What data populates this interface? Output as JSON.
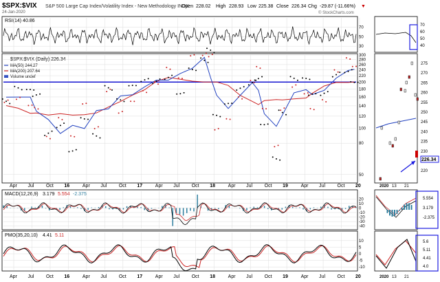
{
  "header": {
    "symbol": "$SPX:$VIX",
    "description": "S&P 500 Large Cap Index/Volatility Index - New Methodology INDX",
    "date": "24-Jan-2020",
    "open_label": "Open",
    "open": "228.02",
    "high_label": "High",
    "high": "228.93",
    "low_label": "Low",
    "low": "225.38",
    "close_label": "Close",
    "close": "226.34",
    "chg_label": "Chg",
    "chg": "-29.87 (-11.66%)",
    "chg_arrow": "▼",
    "watermark": "© StockCharts.com",
    "colors": {
      "bg": "#ffffff",
      "grid": "#dcdcdc",
      "axis": "#000000",
      "ma50": "#1f3fbf",
      "ma200": "#cc2222",
      "accent_box": "#1a1ae0",
      "macd_hist": "#2f7f9f"
    }
  },
  "panels": {
    "rsi": {
      "legend": "RSI(14) 40.86",
      "ticks": [
        "70",
        "50",
        "30"
      ],
      "right_ticks": [
        "70",
        "60",
        "50",
        "40"
      ]
    },
    "price": {
      "legend": [
        "$SPX:$VIX (Daily) 226.34",
        "MA(50) 244.27",
        "MA(200) 207.64",
        "Volume undef"
      ],
      "ticks": [
        "300",
        "280",
        "260",
        "240",
        "220",
        "200",
        "180",
        "160",
        "140",
        "120",
        "100",
        "80",
        "50"
      ],
      "right_ticks": [
        "275",
        "270",
        "265",
        "260",
        "255",
        "250",
        "245",
        "240",
        "235",
        "230",
        "225",
        "220"
      ],
      "last_value": "226.34",
      "horizontal_line_value": 200
    },
    "macd": {
      "legend_prefix": "MACD(12,26,9)",
      "legend_values": [
        "3.179",
        "5.554",
        "-2.375"
      ],
      "ticks": [
        "20",
        "10",
        "0",
        "-10",
        "-20",
        "-30",
        "-40"
      ],
      "right_values": [
        "5.554",
        "3.179",
        "-2.375"
      ]
    },
    "pmo": {
      "legend_prefix": "PMO(35,20,10)",
      "legend_values": [
        "4.41",
        "5.11"
      ],
      "ticks": [
        "10",
        "5",
        "0",
        "-5",
        "-10"
      ],
      "right_values": [
        "5.6",
        "5.11",
        "4.41",
        "4.0"
      ]
    }
  },
  "x_axis": {
    "labels": [
      "Apr",
      "Jul",
      "Oct",
      "16",
      "Apr",
      "Jul",
      "Oct",
      "17",
      "Apr",
      "Jul",
      "Oct",
      "18",
      "Apr",
      "Jul",
      "Oct",
      "19",
      "Apr",
      "Jul",
      "Oct",
      "20"
    ],
    "bold_labels": [
      "16",
      "17",
      "18",
      "19",
      "20"
    ],
    "right_labels": [
      "2020",
      "13",
      "21"
    ]
  },
  "chart_data": {
    "type": "line",
    "title": "$SPX:$VIX",
    "x_range": [
      "2015-03",
      "2020-01-24"
    ],
    "y_scale": "log",
    "ylim": [
      45,
      300
    ],
    "series": [
      {
        "name": "$SPX:$VIX (Daily)",
        "last": 226.34,
        "x": [
          "2015-03",
          "2015-05",
          "2015-07",
          "2015-08",
          "2015-10",
          "2015-12",
          "2016-02",
          "2016-04",
          "2016-06",
          "2016-08",
          "2016-10",
          "2016-12",
          "2017-02",
          "2017-04",
          "2017-06",
          "2017-08",
          "2017-10",
          "2017-12",
          "2018-01",
          "2018-02",
          "2018-04",
          "2018-06",
          "2018-08",
          "2018-09",
          "2018-10",
          "2018-12",
          "2019-01",
          "2019-03",
          "2019-05",
          "2019-06",
          "2019-08",
          "2019-10",
          "2019-12",
          "2020-01"
        ],
        "values": [
          150,
          170,
          160,
          150,
          90,
          110,
          80,
          130,
          95,
          180,
          140,
          170,
          190,
          200,
          230,
          190,
          270,
          290,
          310,
          110,
          130,
          170,
          200,
          230,
          120,
          70,
          130,
          200,
          190,
          150,
          160,
          230,
          260,
          226
        ]
      },
      {
        "name": "MA(50)",
        "last": 244.27
      },
      {
        "name": "MA(200)",
        "last": 207.64
      },
      {
        "name": "RSI(14)",
        "last": 40.86
      },
      {
        "name": "MACD(12,26,9)",
        "values_last": [
          3.179,
          5.554,
          -2.375
        ]
      },
      {
        "name": "PMO(35,20,10)",
        "values_last": [
          4.41,
          5.11
        ]
      }
    ],
    "reference_line": 200
  }
}
